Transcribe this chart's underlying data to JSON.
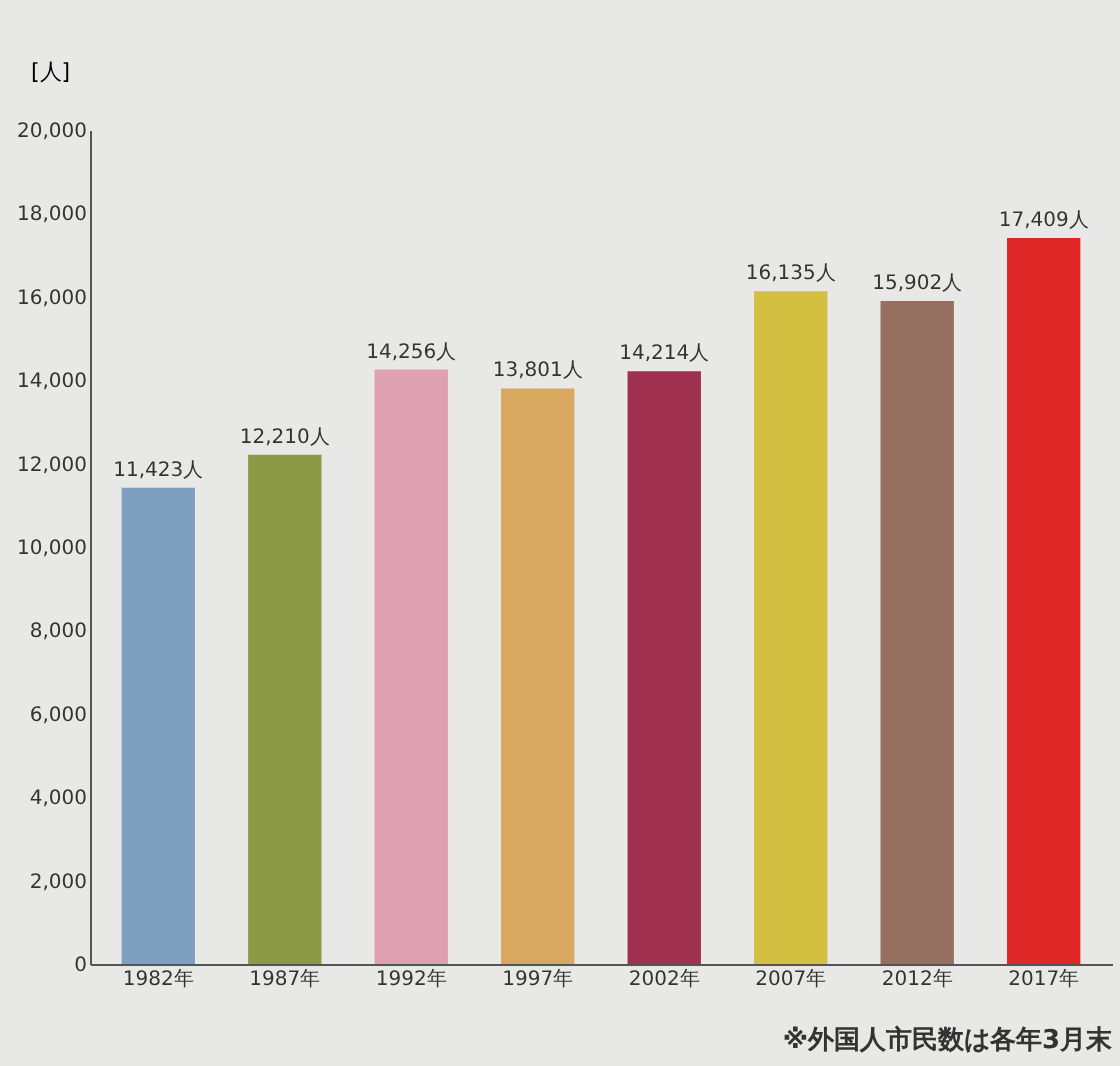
{
  "chart_data": {
    "type": "bar",
    "ylabel": "[人]",
    "categories": [
      "1982年",
      "1987年",
      "1992年",
      "1997年",
      "2002年",
      "2007年",
      "2012年",
      "2017年"
    ],
    "values": [
      11423,
      12210,
      14256,
      13801,
      14214,
      16135,
      15902,
      17409
    ],
    "value_labels": [
      "11,423人",
      "12,210人",
      "14,256人",
      "13,801人",
      "14,214人",
      "16,135人",
      "15,902人",
      "17,409人"
    ],
    "colors": [
      "#7f9fc0",
      "#8c9a45",
      "#e0a0b4",
      "#d8a860",
      "#a03050",
      "#d4c040",
      "#957060",
      "#e02828"
    ],
    "ylim": [
      0,
      20000
    ],
    "yticks": [
      0,
      {
        "value": 2000,
        "label": "2,000"
      },
      {
        "value": 4000,
        "label": "4,000"
      },
      {
        "value": 6000,
        "label": "6,000"
      },
      {
        "value": 8000,
        "label": "8,000"
      },
      {
        "value": 10000,
        "label": "10,000"
      },
      {
        "value": 12000,
        "label": "12,000"
      },
      {
        "value": 14000,
        "label": "14,000"
      },
      {
        "value": 16000,
        "label": "16,000"
      },
      {
        "value": 18000,
        "label": "18,000"
      },
      {
        "value": 20000,
        "label": "20,000"
      }
    ],
    "grid": false,
    "annotations": [
      "※外国人市民数は各年3月末"
    ]
  }
}
